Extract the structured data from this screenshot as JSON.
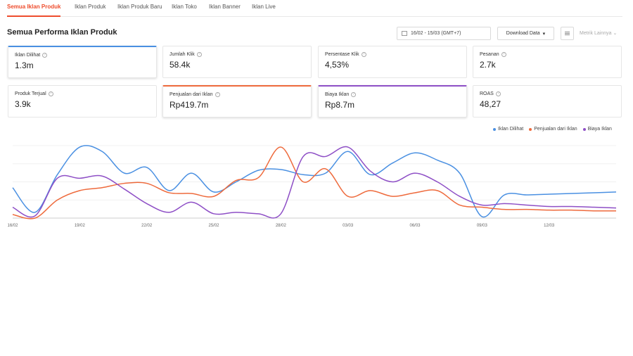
{
  "tabs": [
    {
      "label": "Semua Iklan Produk",
      "active": true
    },
    {
      "label": "Iklan Produk",
      "active": false
    },
    {
      "label": "Iklan Produk Baru",
      "active": false
    },
    {
      "label": "Iklan Toko",
      "active": false
    },
    {
      "label": "Iklan Banner",
      "active": false
    },
    {
      "label": "Iklan Live",
      "active": false
    }
  ],
  "header": {
    "title": "Semua Performa Iklan Produk",
    "date_range": "16/02 - 15/03 (GMT+7)",
    "download_label": "Download Data",
    "metrik_label": "Metrik Lainnya"
  },
  "metrics": [
    {
      "label": "Iklan Dilihat",
      "value": "1.3m",
      "selected": "blue"
    },
    {
      "label": "Jumlah Klik",
      "value": "58.4k",
      "selected": ""
    },
    {
      "label": "Persentase Klik",
      "value": "4,53%",
      "selected": ""
    },
    {
      "label": "Pesanan",
      "value": "2.7k",
      "selected": ""
    },
    {
      "label": "Produk Terjual",
      "value": "3.9k",
      "selected": ""
    },
    {
      "label": "Penjualan dari Iklan",
      "value": "Rp419.7m",
      "selected": "orange"
    },
    {
      "label": "Biaya Iklan",
      "value": "Rp8.7m",
      "selected": "purple"
    },
    {
      "label": "ROAS",
      "value": "48,27",
      "selected": ""
    }
  ],
  "colors": {
    "accent": "#ee4d2d",
    "blue": "#4a90e2",
    "orange": "#ee6a3c",
    "purple": "#8e4fc6"
  },
  "chart_data": {
    "type": "line",
    "x": [
      "16/02",
      "17/02",
      "18/02",
      "19/02",
      "20/02",
      "21/02",
      "22/02",
      "23/02",
      "24/02",
      "25/02",
      "26/02",
      "27/02",
      "28/02",
      "01/03",
      "02/03",
      "03/03",
      "04/03",
      "05/03",
      "06/03",
      "07/03",
      "08/03",
      "09/03",
      "10/03",
      "11/03",
      "12/03",
      "13/03",
      "14/03",
      "15/03"
    ],
    "tick_labels": [
      "16/02",
      "19/02",
      "22/02",
      "25/02",
      "28/02",
      "03/03",
      "06/03",
      "09/03",
      "12/03"
    ],
    "ylim": [
      0,
      100
    ],
    "grid": true,
    "legend_position": "top-right",
    "series": [
      {
        "name": "Iklan Dilihat",
        "color": "#4a90e2",
        "values": [
          42,
          8,
          60,
          98,
          92,
          62,
          70,
          38,
          62,
          36,
          50,
          66,
          67,
          60,
          62,
          92,
          60,
          76,
          90,
          80,
          62,
          2,
          32,
          32,
          33,
          34,
          35,
          36
        ]
      },
      {
        "name": "Penjualan dari Iklan",
        "color": "#ee6a3c",
        "values": [
          5,
          0,
          25,
          38,
          42,
          48,
          48,
          35,
          34,
          30,
          52,
          56,
          98,
          50,
          68,
          30,
          38,
          30,
          35,
          38,
          18,
          15,
          12,
          12,
          11,
          11,
          10,
          10
        ]
      },
      {
        "name": "Biaya Iklan",
        "color": "#8e4fc6",
        "values": [
          15,
          3,
          55,
          55,
          58,
          40,
          20,
          8,
          22,
          6,
          8,
          6,
          6,
          85,
          85,
          98,
          65,
          50,
          62,
          50,
          30,
          18,
          20,
          18,
          16,
          16,
          15,
          14
        ]
      }
    ]
  }
}
